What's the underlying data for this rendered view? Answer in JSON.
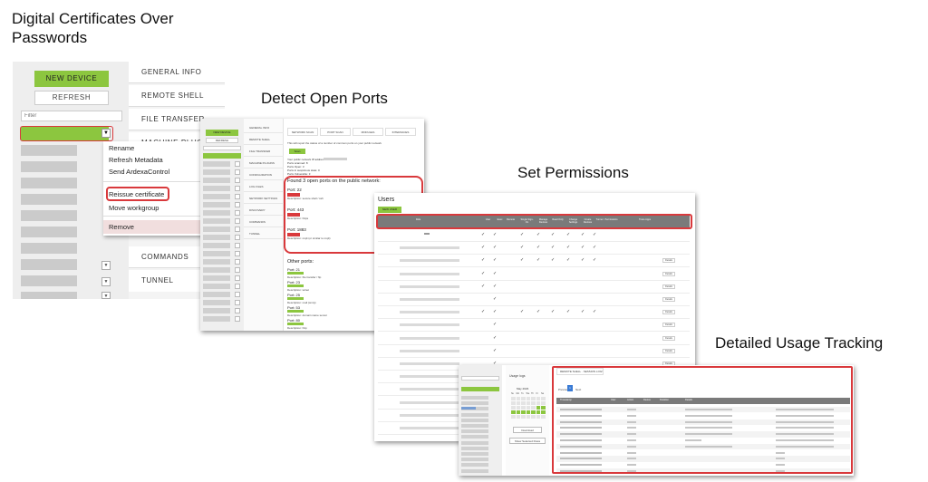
{
  "captions": {
    "certificates": "Digital Certificates Over Passwords",
    "ports": "Detect Open Ports",
    "permissions": "Set Permissions",
    "tracking": "Detailed Usage Tracking"
  },
  "panel1": {
    "new_device": "NEW DEVICE",
    "refresh": "REFRESH",
    "filter_placeholder": "Filter",
    "tabs": [
      "GENERAL INFO",
      "REMOTE SHELL",
      "FILE TRANSFER",
      "MACHINE PLUGINS"
    ],
    "tabs_bottom": [
      "COMMANDS",
      "TUNNEL"
    ],
    "context_menu": [
      "Rename",
      "Refresh Metadata",
      "Send ArdexaControl",
      "Reissue certificate",
      "Move workgroup",
      "Remove"
    ],
    "highlight_color": "#d9393c",
    "accent_green": "#8cc63f"
  },
  "panel2": {
    "new_device": "NEW DEVICE",
    "refresh": "REFRESH",
    "nav": [
      "GENERAL INFO",
      "REMOTE SHELL",
      "FILE TRANSFER",
      "MACHINE PLUGINS",
      "CONFIGURATION",
      "LOG FILES",
      "NETWORK SETTINGS",
      "DISCOVERY",
      "COMMANDS",
      "TUNNEL"
    ],
    "tabs": [
      "NETWORK SCAN",
      "PORT SCAN",
      "MODULES",
      "INTERFACES"
    ],
    "intro": "This will report the status of a number of common ports on your public network",
    "scan": "Scan",
    "info": [
      "Your public network IP address:",
      "Ports scanned: 8",
      "Ports Open: 3",
      "Ports in suspicious state: 0",
      "Ports Vulnerable: 3"
    ],
    "found_heading": "Found 3 open ports on the public network:",
    "open_ports": [
      {
        "port": "Port: 22",
        "desc": "Description: secure shell / ssh"
      },
      {
        "port": "Port: 443",
        "desc": "Description: https"
      },
      {
        "port": "Port: 1883",
        "desc": "Description: mqtt (or similar to mqtt)"
      }
    ],
    "other_heading": "Other ports:",
    "other_ports": [
      {
        "port": "Port: 21",
        "desc": "Description: file transfer / ftp"
      },
      {
        "port": "Port: 23",
        "desc": "Description: telnet"
      },
      {
        "port": "Port: 25",
        "desc": "Description: mail (smtp)"
      },
      {
        "port": "Port: 53",
        "desc": "Description: domain name server"
      },
      {
        "port": "Port: 80",
        "desc": "Description: http"
      }
    ]
  },
  "panel3": {
    "title": "Users",
    "add_user": "NEW USER",
    "columns": [
      "Role",
      "User",
      "Exec",
      "Remote",
      "Single Sign-On",
      "Manage Devices",
      "Read Only",
      "Change Settings",
      "Create Devices",
      "Tunnel",
      "Permissions",
      "Trace Apps"
    ],
    "row_action": "Details",
    "checkmark": "✓"
  },
  "panel4": {
    "filter_placeholder": "Filter",
    "date_label": "Usage logs",
    "month_label": "May 2023",
    "daynames": [
      "Su",
      "Mo",
      "Tu",
      "We",
      "Th",
      "Fr",
      "Sa"
    ],
    "tab": "REMOTE SHELL · SESSION LOGS",
    "paginate": [
      "Previous",
      "1",
      "Next"
    ],
    "columns": [
      "Timestamp",
      "User",
      "Action",
      "Device",
      "Duration",
      "Details"
    ],
    "download": "Download",
    "show_all": "Show Selected Rows"
  }
}
